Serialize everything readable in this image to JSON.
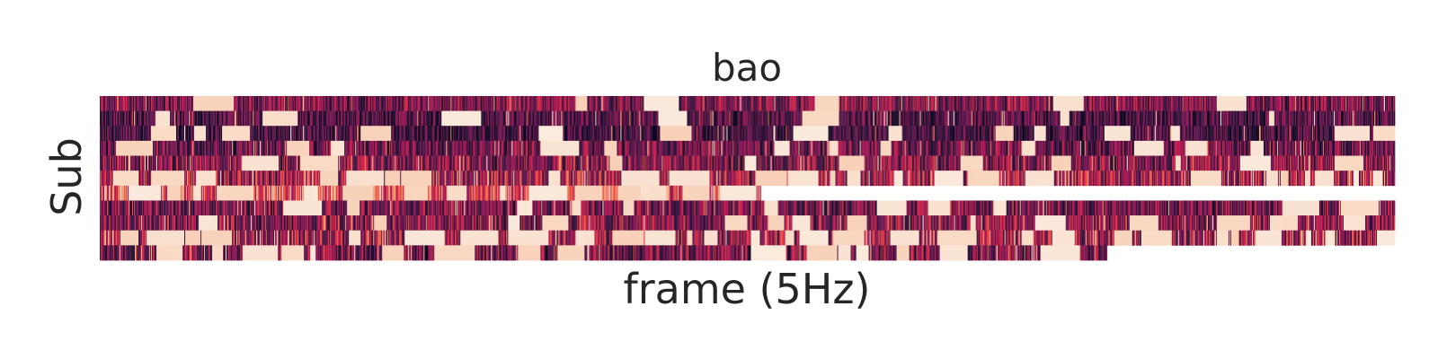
{
  "chart_data": {
    "type": "heatmap",
    "title": "bao",
    "xlabel": "frame (5Hz)",
    "ylabel": "Sub",
    "grid": false,
    "legend": "none",
    "x_ticks_visible": false,
    "y_ticks_visible": false,
    "colormap": "rocket",
    "colormap_stops": [
      "#03051a",
      "#35193e",
      "#701f57",
      "#ad1759",
      "#e13342",
      "#f37651",
      "#f6b48f",
      "#faebdd"
    ],
    "missing_color": "#ffffff",
    "value_range": [
      0,
      1
    ],
    "n_rows": 11,
    "n_cols": 1440,
    "rows": [
      {
        "length": 1440,
        "mean": 0.32,
        "variability": 0.26,
        "bright_fraction": 0.05
      },
      {
        "length": 1440,
        "mean": 0.22,
        "variability": 0.22,
        "bright_fraction": 0.05
      },
      {
        "length": 1440,
        "mean": 0.18,
        "variability": 0.2,
        "bright_fraction": 0.04
      },
      {
        "length": 1440,
        "mean": 0.28,
        "variability": 0.25,
        "bright_fraction": 0.06
      },
      {
        "length": 1440,
        "mean": 0.34,
        "variability": 0.28,
        "bright_fraction": 0.1
      },
      {
        "length": 1440,
        "mean": 0.4,
        "variability": 0.3,
        "bright_fraction": 0.16
      },
      {
        "length": 735,
        "mean": 0.62,
        "variability": 0.3,
        "bright_fraction": 0.38
      },
      {
        "length": 1440,
        "mean": 0.3,
        "variability": 0.26,
        "bright_fraction": 0.06
      },
      {
        "length": 1440,
        "mean": 0.34,
        "variability": 0.28,
        "bright_fraction": 0.12
      },
      {
        "length": 1440,
        "mean": 0.38,
        "variability": 0.3,
        "bright_fraction": 0.18
      },
      {
        "length": 1120,
        "mean": 0.3,
        "variability": 0.28,
        "bright_fraction": 0.12
      }
    ]
  }
}
